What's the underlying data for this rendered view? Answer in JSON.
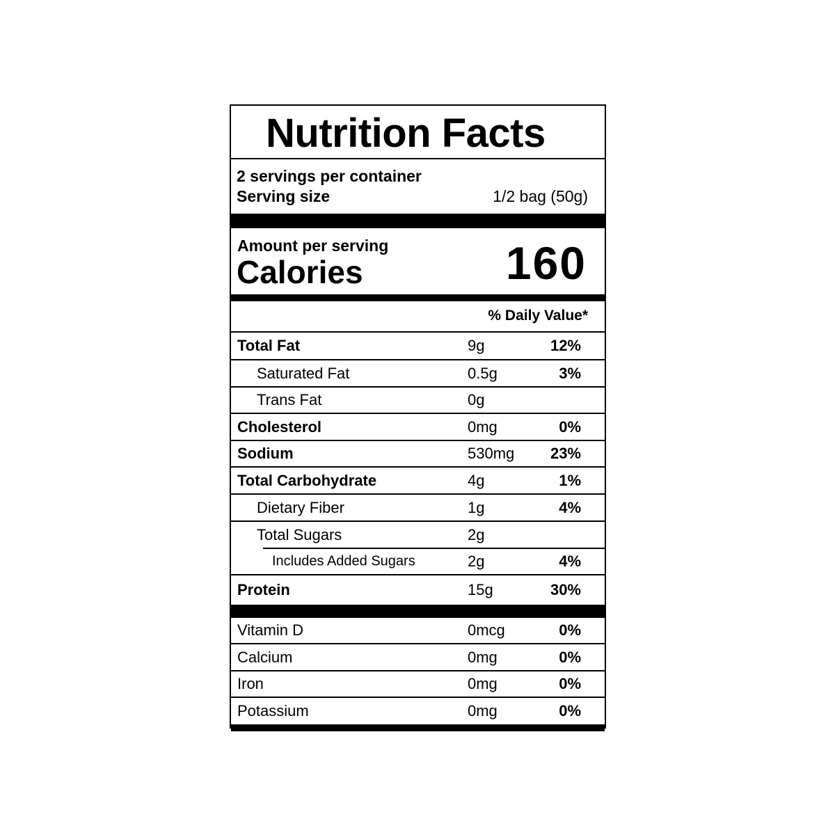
{
  "title": "Nutrition Facts",
  "servings_per_container": "2 servings per container",
  "serving_size_label": "Serving size",
  "serving_size_value": "1/2 bag (50g)",
  "amount_per_serving": "Amount per serving",
  "calories_label": "Calories",
  "calories_value": "160",
  "daily_value_header": "% Daily Value*",
  "nutrients": [
    {
      "name": "Total Fat",
      "amount": "9g",
      "dv": "12%",
      "style": "bold"
    },
    {
      "name": "Saturated Fat",
      "amount": "0.5g",
      "dv": "3%",
      "style": "indent1"
    },
    {
      "name": "Trans Fat",
      "amount": "0g",
      "dv": "",
      "style": "indent1"
    },
    {
      "name": "Cholesterol",
      "amount": "0mg",
      "dv": "0%",
      "style": "bold"
    },
    {
      "name": "Sodium",
      "amount": "530mg",
      "dv": "23%",
      "style": "bold"
    },
    {
      "name": "Total Carbohydrate",
      "amount": "4g",
      "dv": "1%",
      "style": "bold"
    },
    {
      "name": "Dietary Fiber",
      "amount": "1g",
      "dv": "4%",
      "style": "indent1"
    },
    {
      "name": "Total Sugars",
      "amount": "2g",
      "dv": "",
      "style": "indent1"
    },
    {
      "name": "Includes Added Sugars",
      "amount": "2g",
      "dv": "4%",
      "style": "indent2"
    },
    {
      "name": "Protein",
      "amount": "15g",
      "dv": "30%",
      "style": "bold"
    }
  ],
  "vitamins": [
    {
      "name": "Vitamin D",
      "amount": "0mcg",
      "dv": "0%"
    },
    {
      "name": "Calcium",
      "amount": "0mg",
      "dv": "0%"
    },
    {
      "name": "Iron",
      "amount": "0mg",
      "dv": "0%"
    },
    {
      "name": "Potassium",
      "amount": "0mg",
      "dv": "0%"
    }
  ]
}
